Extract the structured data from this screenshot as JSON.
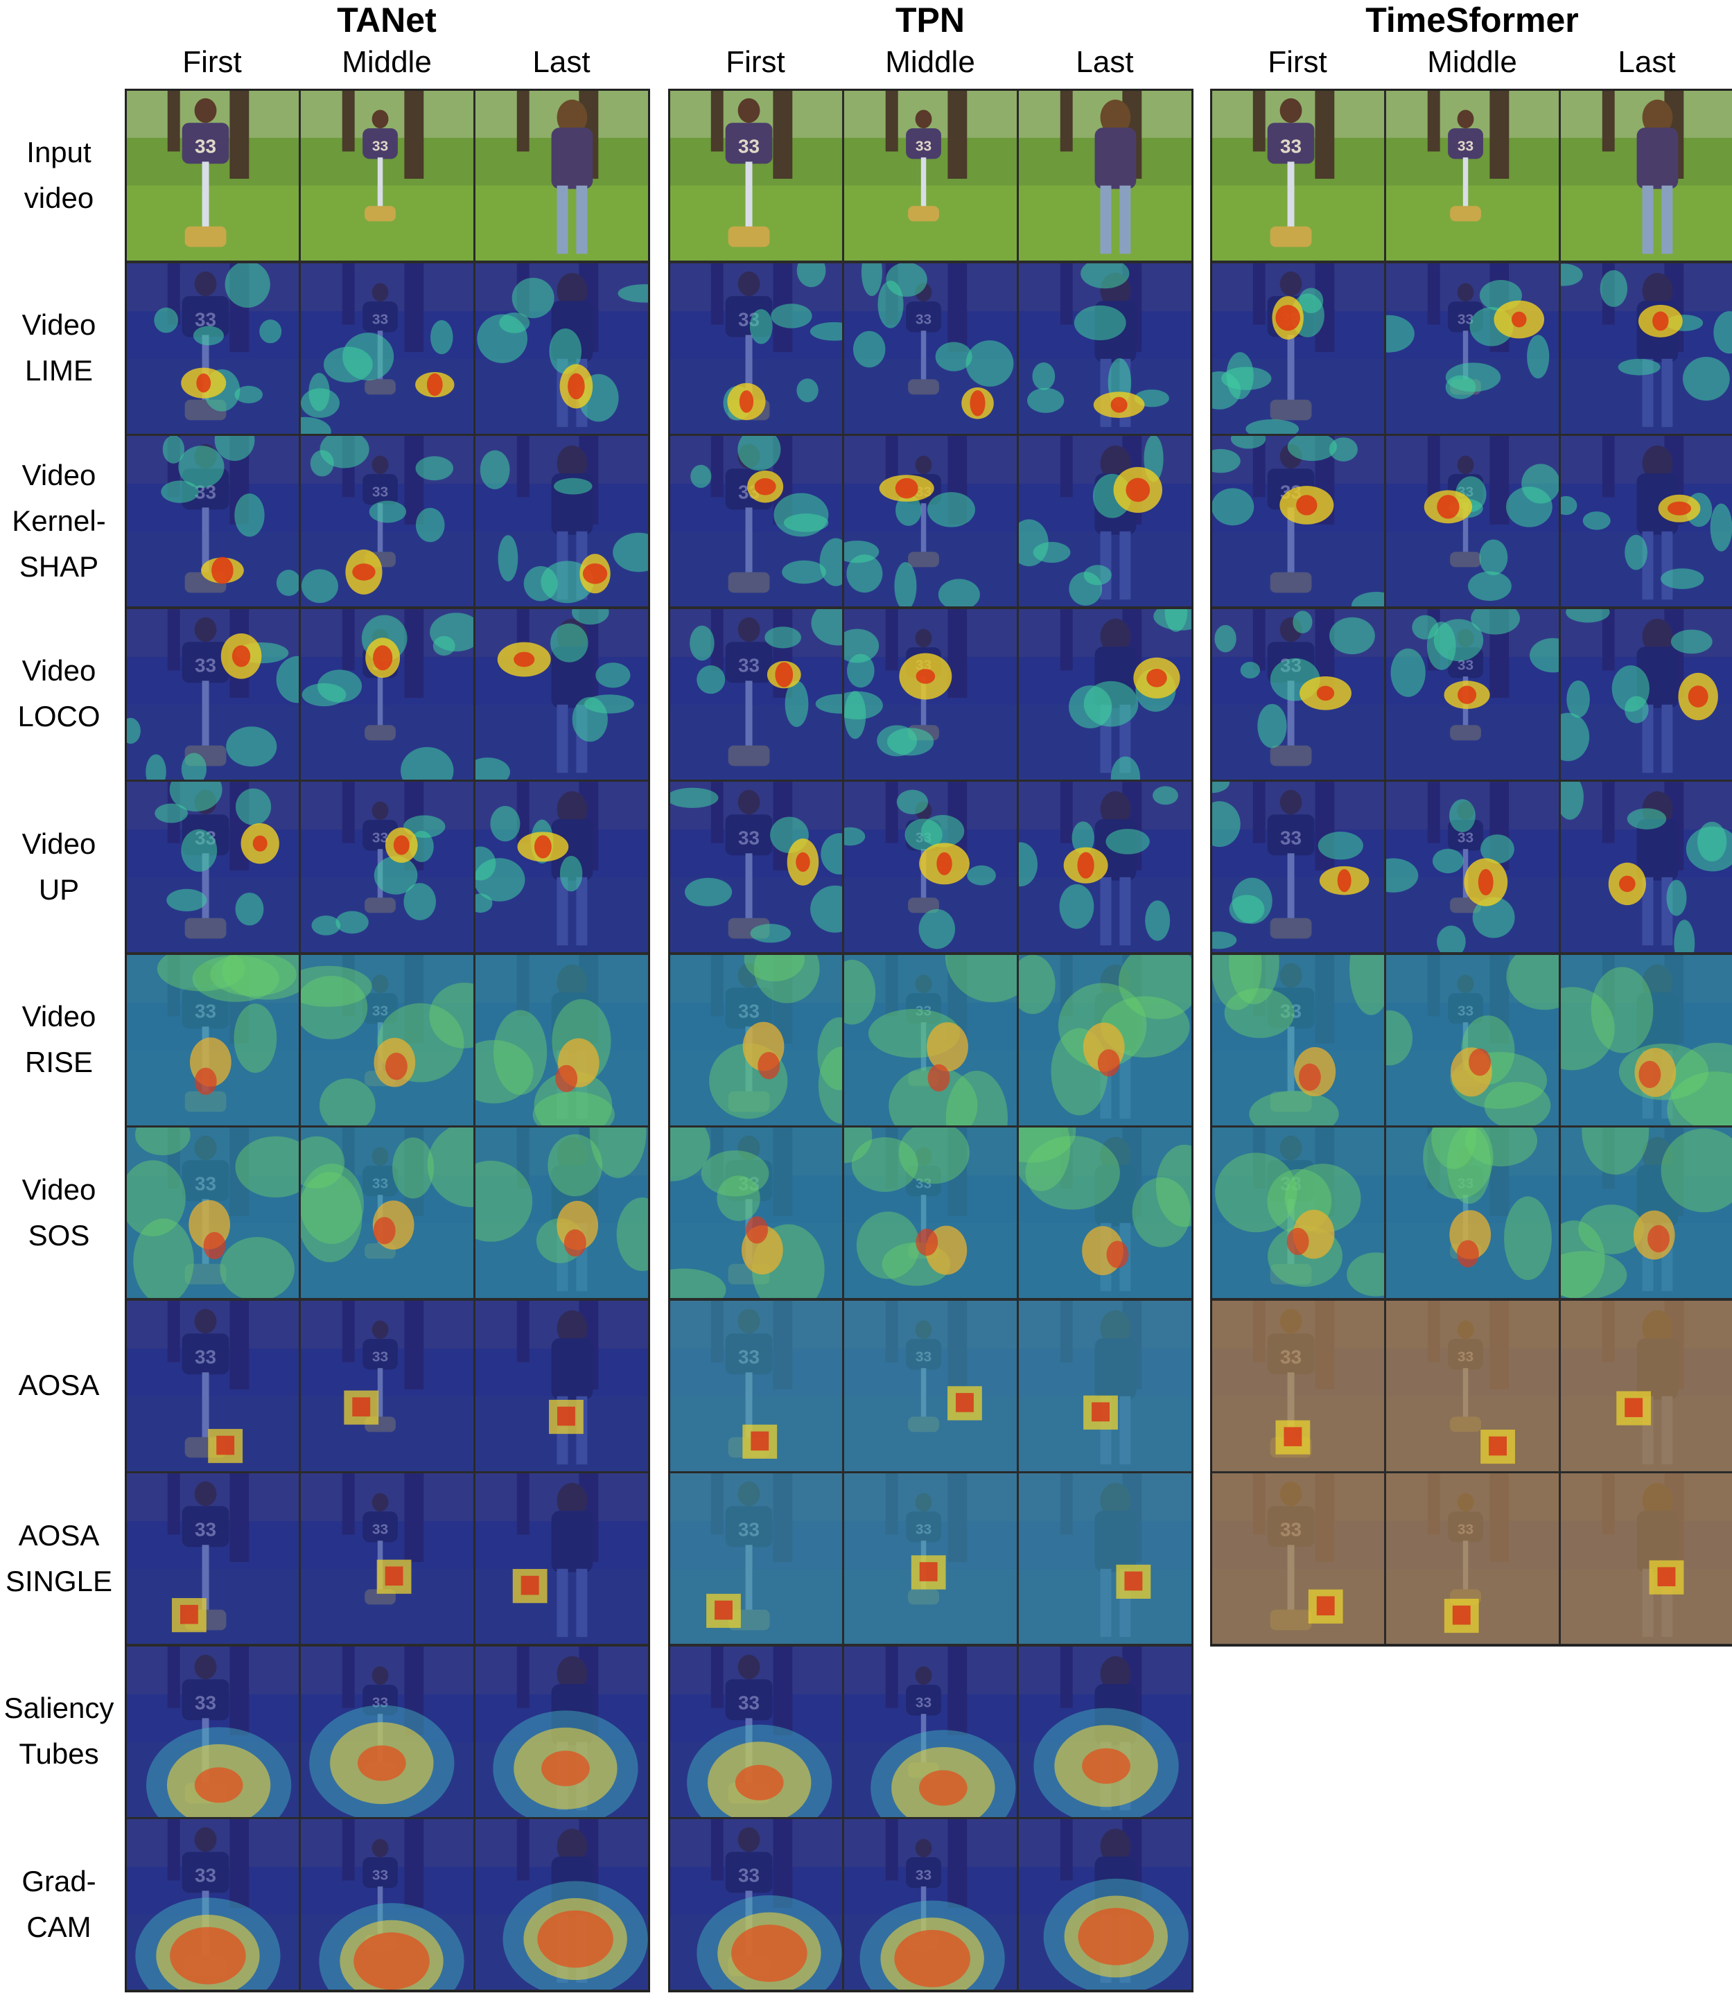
{
  "figure": {
    "models": [
      {
        "name": "TANet",
        "frames": [
          "First",
          "Middle",
          "Last"
        ],
        "methods": 11
      },
      {
        "name": "TPN",
        "frames": [
          "First",
          "Middle",
          "Last"
        ],
        "methods": 11
      },
      {
        "name": "TimeSformer",
        "frames": [
          "First",
          "Middle",
          "Last"
        ],
        "methods": 9
      }
    ],
    "rows": [
      {
        "id": "input",
        "lines": [
          "Input",
          "video"
        ]
      },
      {
        "id": "lime",
        "lines": [
          "Video",
          "LIME"
        ]
      },
      {
        "id": "kernelshap",
        "lines": [
          "Video",
          "Kernel-",
          "SHAP"
        ]
      },
      {
        "id": "loco",
        "lines": [
          "Video",
          "LOCO"
        ]
      },
      {
        "id": "up",
        "lines": [
          "Video",
          "UP"
        ]
      },
      {
        "id": "rise",
        "lines": [
          "Video",
          "RISE"
        ]
      },
      {
        "id": "sos",
        "lines": [
          "Video",
          "SOS"
        ]
      },
      {
        "id": "aosa",
        "lines": [
          "AOSA"
        ]
      },
      {
        "id": "aosa-single",
        "lines": [
          "AOSA",
          "SINGLE"
        ]
      },
      {
        "id": "saliency-tubes",
        "lines": [
          "Saliency",
          "Tubes"
        ]
      },
      {
        "id": "gradcam",
        "lines": [
          "Grad-",
          "CAM"
        ]
      }
    ]
  }
}
